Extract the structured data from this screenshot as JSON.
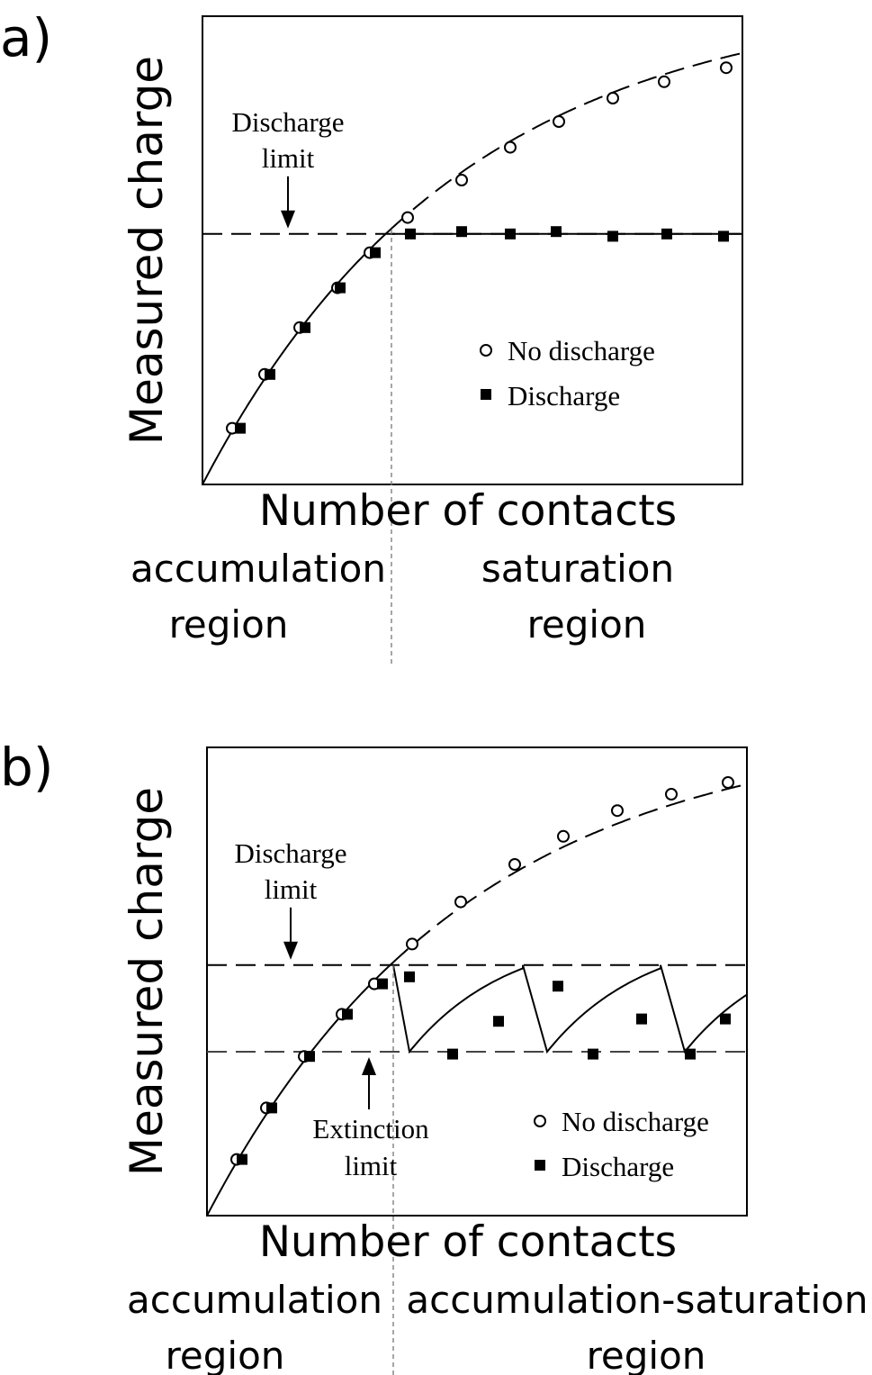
{
  "chart_data": [
    {
      "type": "scatter",
      "panel_label": "a)",
      "xlabel": "Number of contacts",
      "ylabel": "Measured charge",
      "xlim": [
        0,
        10
      ],
      "ylim": [
        0,
        10
      ],
      "grid": false,
      "legend_position": "center-right",
      "region_divider_x": 3.5,
      "regions": [
        {
          "line1": "accumulation",
          "line2": "region"
        },
        {
          "line1": "saturation",
          "line2": "region"
        }
      ],
      "annotations": [
        {
          "name": "discharge-limit",
          "line1": "Discharge",
          "line2": "limit",
          "y": 5.35
        }
      ],
      "series": [
        {
          "name": "No discharge",
          "marker": "open-circle",
          "x": [
            0.55,
            1.15,
            1.8,
            2.5,
            3.1,
            3.8,
            4.8,
            5.7,
            6.6,
            7.6,
            8.55,
            9.7
          ],
          "y": [
            1.2,
            2.35,
            3.35,
            4.2,
            4.95,
            5.7,
            6.5,
            7.2,
            7.75,
            8.25,
            8.6,
            8.9
          ]
        },
        {
          "name": "Discharge",
          "marker": "filled-square",
          "x": [
            0.7,
            1.25,
            1.9,
            2.55,
            3.2,
            3.85,
            4.8,
            5.7,
            6.55,
            7.6,
            8.6,
            9.65
          ],
          "y": [
            1.2,
            2.35,
            3.35,
            4.2,
            4.95,
            5.35,
            5.4,
            5.35,
            5.4,
            5.3,
            5.35,
            5.3
          ]
        }
      ]
    },
    {
      "type": "scatter",
      "panel_label": "b)",
      "xlabel": "Number of contacts",
      "ylabel": "Measured charge",
      "xlim": [
        0,
        10
      ],
      "ylim": [
        0,
        10
      ],
      "grid": false,
      "legend_position": "bottom-right",
      "region_divider_x": 3.45,
      "regions": [
        {
          "line1": "accumulation",
          "line2": "region"
        },
        {
          "line1": "accumulation-saturation",
          "line2": "region"
        }
      ],
      "annotations": [
        {
          "name": "discharge-limit",
          "line1": "Discharge",
          "line2": "limit",
          "y": 5.35
        },
        {
          "name": "extinction-limit",
          "line1": "Extinction",
          "line2": "limit",
          "y": 3.5
        }
      ],
      "series": [
        {
          "name": "No discharge",
          "marker": "open-circle",
          "x": [
            0.55,
            1.1,
            1.8,
            2.5,
            3.1,
            3.8,
            4.7,
            5.7,
            6.6,
            7.6,
            8.6,
            9.65
          ],
          "y": [
            1.2,
            2.3,
            3.4,
            4.3,
            4.95,
            5.8,
            6.7,
            7.5,
            8.1,
            8.65,
            9.0,
            9.25
          ]
        },
        {
          "name": "Discharge",
          "marker": "filled-square",
          "x": [
            0.65,
            1.2,
            1.9,
            2.6,
            3.25,
            3.75,
            4.55,
            5.4,
            6.5,
            7.15,
            8.05,
            8.95,
            9.6
          ],
          "y": [
            1.2,
            2.3,
            3.4,
            4.3,
            4.95,
            5.1,
            3.45,
            4.15,
            4.9,
            3.45,
            4.2,
            3.45,
            4.2
          ]
        }
      ]
    }
  ]
}
